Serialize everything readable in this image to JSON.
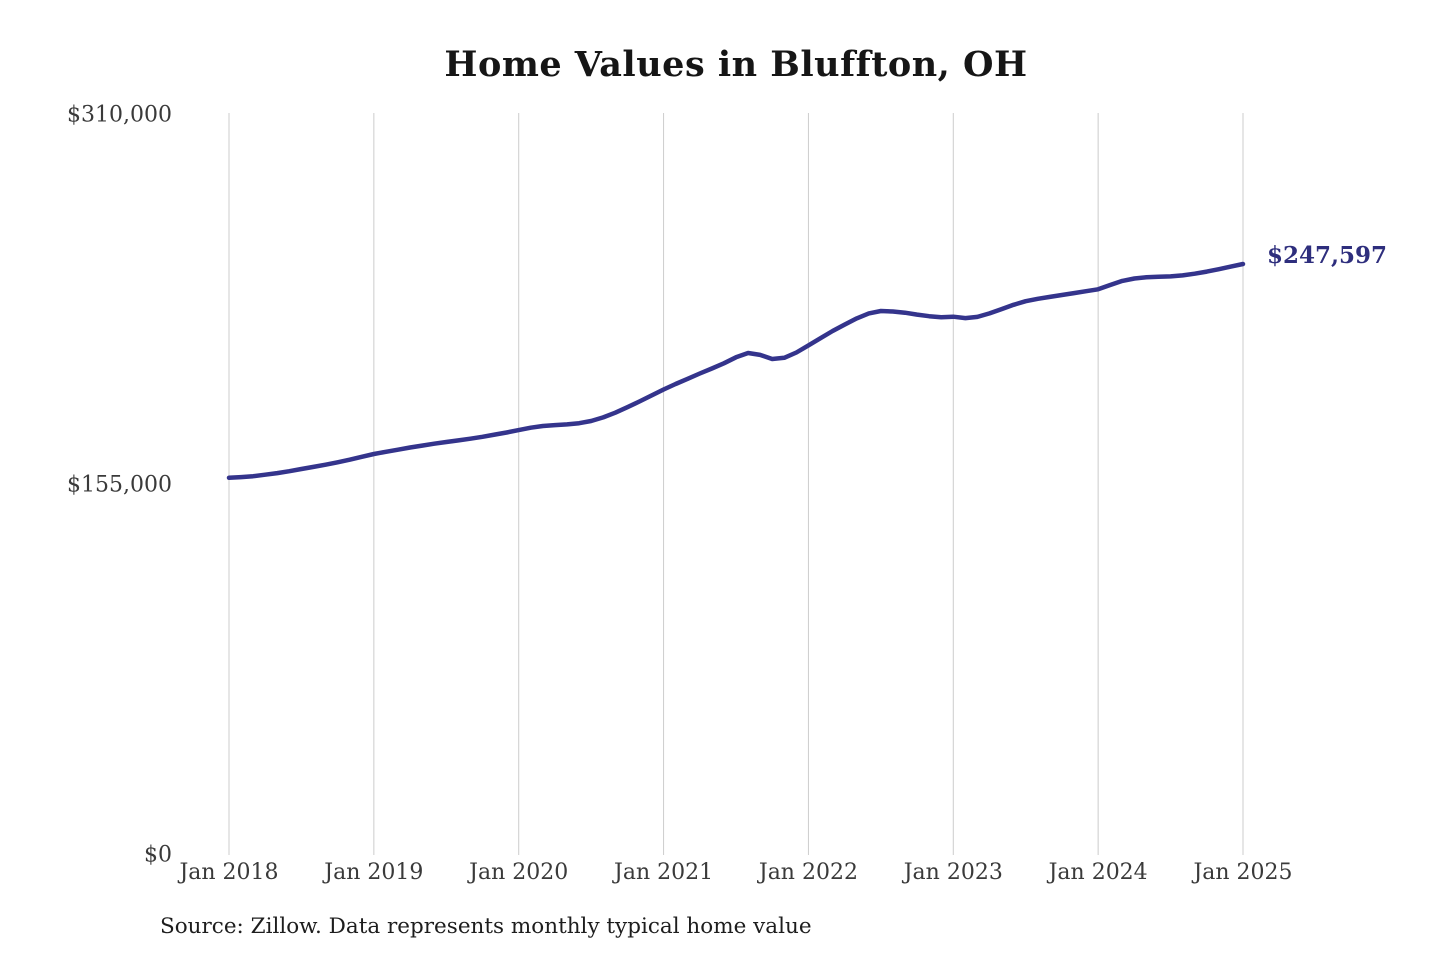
{
  "chart_data": {
    "type": "line",
    "title": "Home Values in Bluffton, OH",
    "source": "Source: Zillow. Data represents monthly typical home value",
    "end_label": "$247,597",
    "latest_value": 247597,
    "x_unit": "month",
    "start_month": "2018-01",
    "end_month": "2025-01",
    "ylim": [
      0,
      310000
    ],
    "grid": "vertical-only",
    "line_color": "#34348c",
    "grid_color": "#cccccc",
    "end_label_color": "#2e2e7d",
    "y_ticks": [
      {
        "label": "$0",
        "value": 0
      },
      {
        "label": "$155,000",
        "value": 155000
      },
      {
        "label": "$310,000",
        "value": 310000
      }
    ],
    "x_ticks": [
      {
        "label": "Jan 2018",
        "year": 2018
      },
      {
        "label": "Jan 2019",
        "year": 2019
      },
      {
        "label": "Jan 2020",
        "year": 2020
      },
      {
        "label": "Jan 2021",
        "year": 2021
      },
      {
        "label": "Jan 2022",
        "year": 2022
      },
      {
        "label": "Jan 2023",
        "year": 2023
      },
      {
        "label": "Jan 2024",
        "year": 2024
      },
      {
        "label": "Jan 2025",
        "year": 2025
      }
    ],
    "values": [
      158000,
      158300,
      158700,
      159300,
      160000,
      160800,
      161700,
      162600,
      163500,
      164500,
      165600,
      166800,
      168000,
      168900,
      169800,
      170700,
      171500,
      172300,
      173000,
      173700,
      174400,
      175200,
      176100,
      177000,
      178000,
      179000,
      179700,
      180100,
      180400,
      180900,
      181800,
      183300,
      185300,
      187600,
      190000,
      192500,
      195000,
      197300,
      199500,
      201700,
      203800,
      206000,
      208500,
      210300,
      209500,
      207800,
      208300,
      210500,
      213500,
      216500,
      219500,
      222200,
      224800,
      226900,
      227900,
      227700,
      227200,
      226400,
      225700,
      225300,
      225500,
      224900,
      225400,
      226900,
      228700,
      230500,
      232000,
      233000,
      233800,
      234600,
      235400,
      236200,
      237000,
      238800,
      240500,
      241500,
      242000,
      242200,
      242400,
      242800,
      243500,
      244400,
      245400,
      246500,
      247597
    ]
  }
}
